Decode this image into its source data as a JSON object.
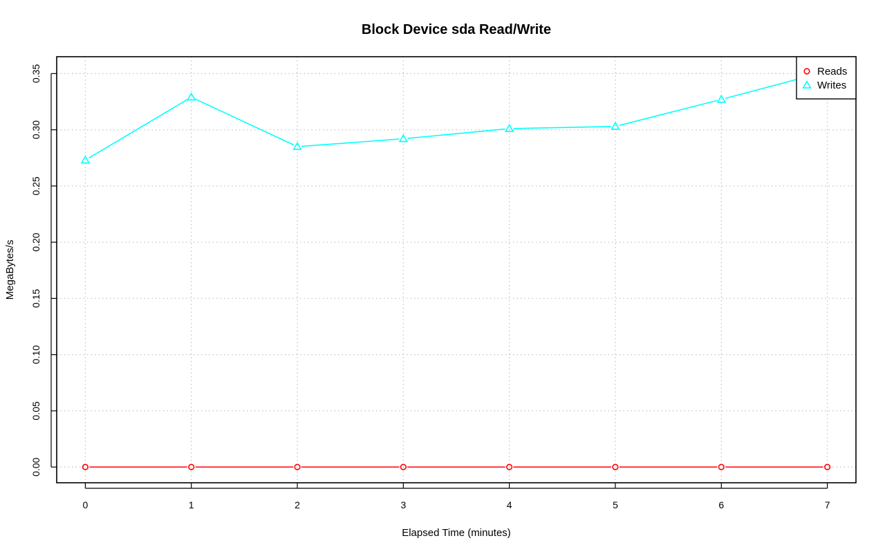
{
  "chart_data": {
    "type": "line",
    "title": "Block Device sda Read/Write",
    "xlabel": "Elapsed Time (minutes)",
    "ylabel": "MegaBytes/s",
    "x": [
      0,
      1,
      2,
      3,
      4,
      5,
      6,
      7
    ],
    "xticks": [
      "0",
      "1",
      "2",
      "3",
      "4",
      "5",
      "6",
      "7"
    ],
    "yticks": [
      "0.00",
      "0.05",
      "0.10",
      "0.15",
      "0.20",
      "0.25",
      "0.30",
      "0.35"
    ],
    "xlim": [
      -0.27,
      7.27
    ],
    "ylim": [
      -0.014,
      0.365
    ],
    "grid": true,
    "legend_position": "top-right",
    "series": [
      {
        "name": "Reads",
        "color": "#ff0000",
        "marker": "circle",
        "values": [
          0,
          0,
          0,
          0,
          0,
          0,
          0,
          0
        ]
      },
      {
        "name": "Writes",
        "color": "#00ffff",
        "marker": "triangle",
        "values": [
          0.273,
          0.329,
          0.285,
          0.292,
          0.301,
          0.303,
          0.327,
          0.352
        ]
      }
    ]
  }
}
